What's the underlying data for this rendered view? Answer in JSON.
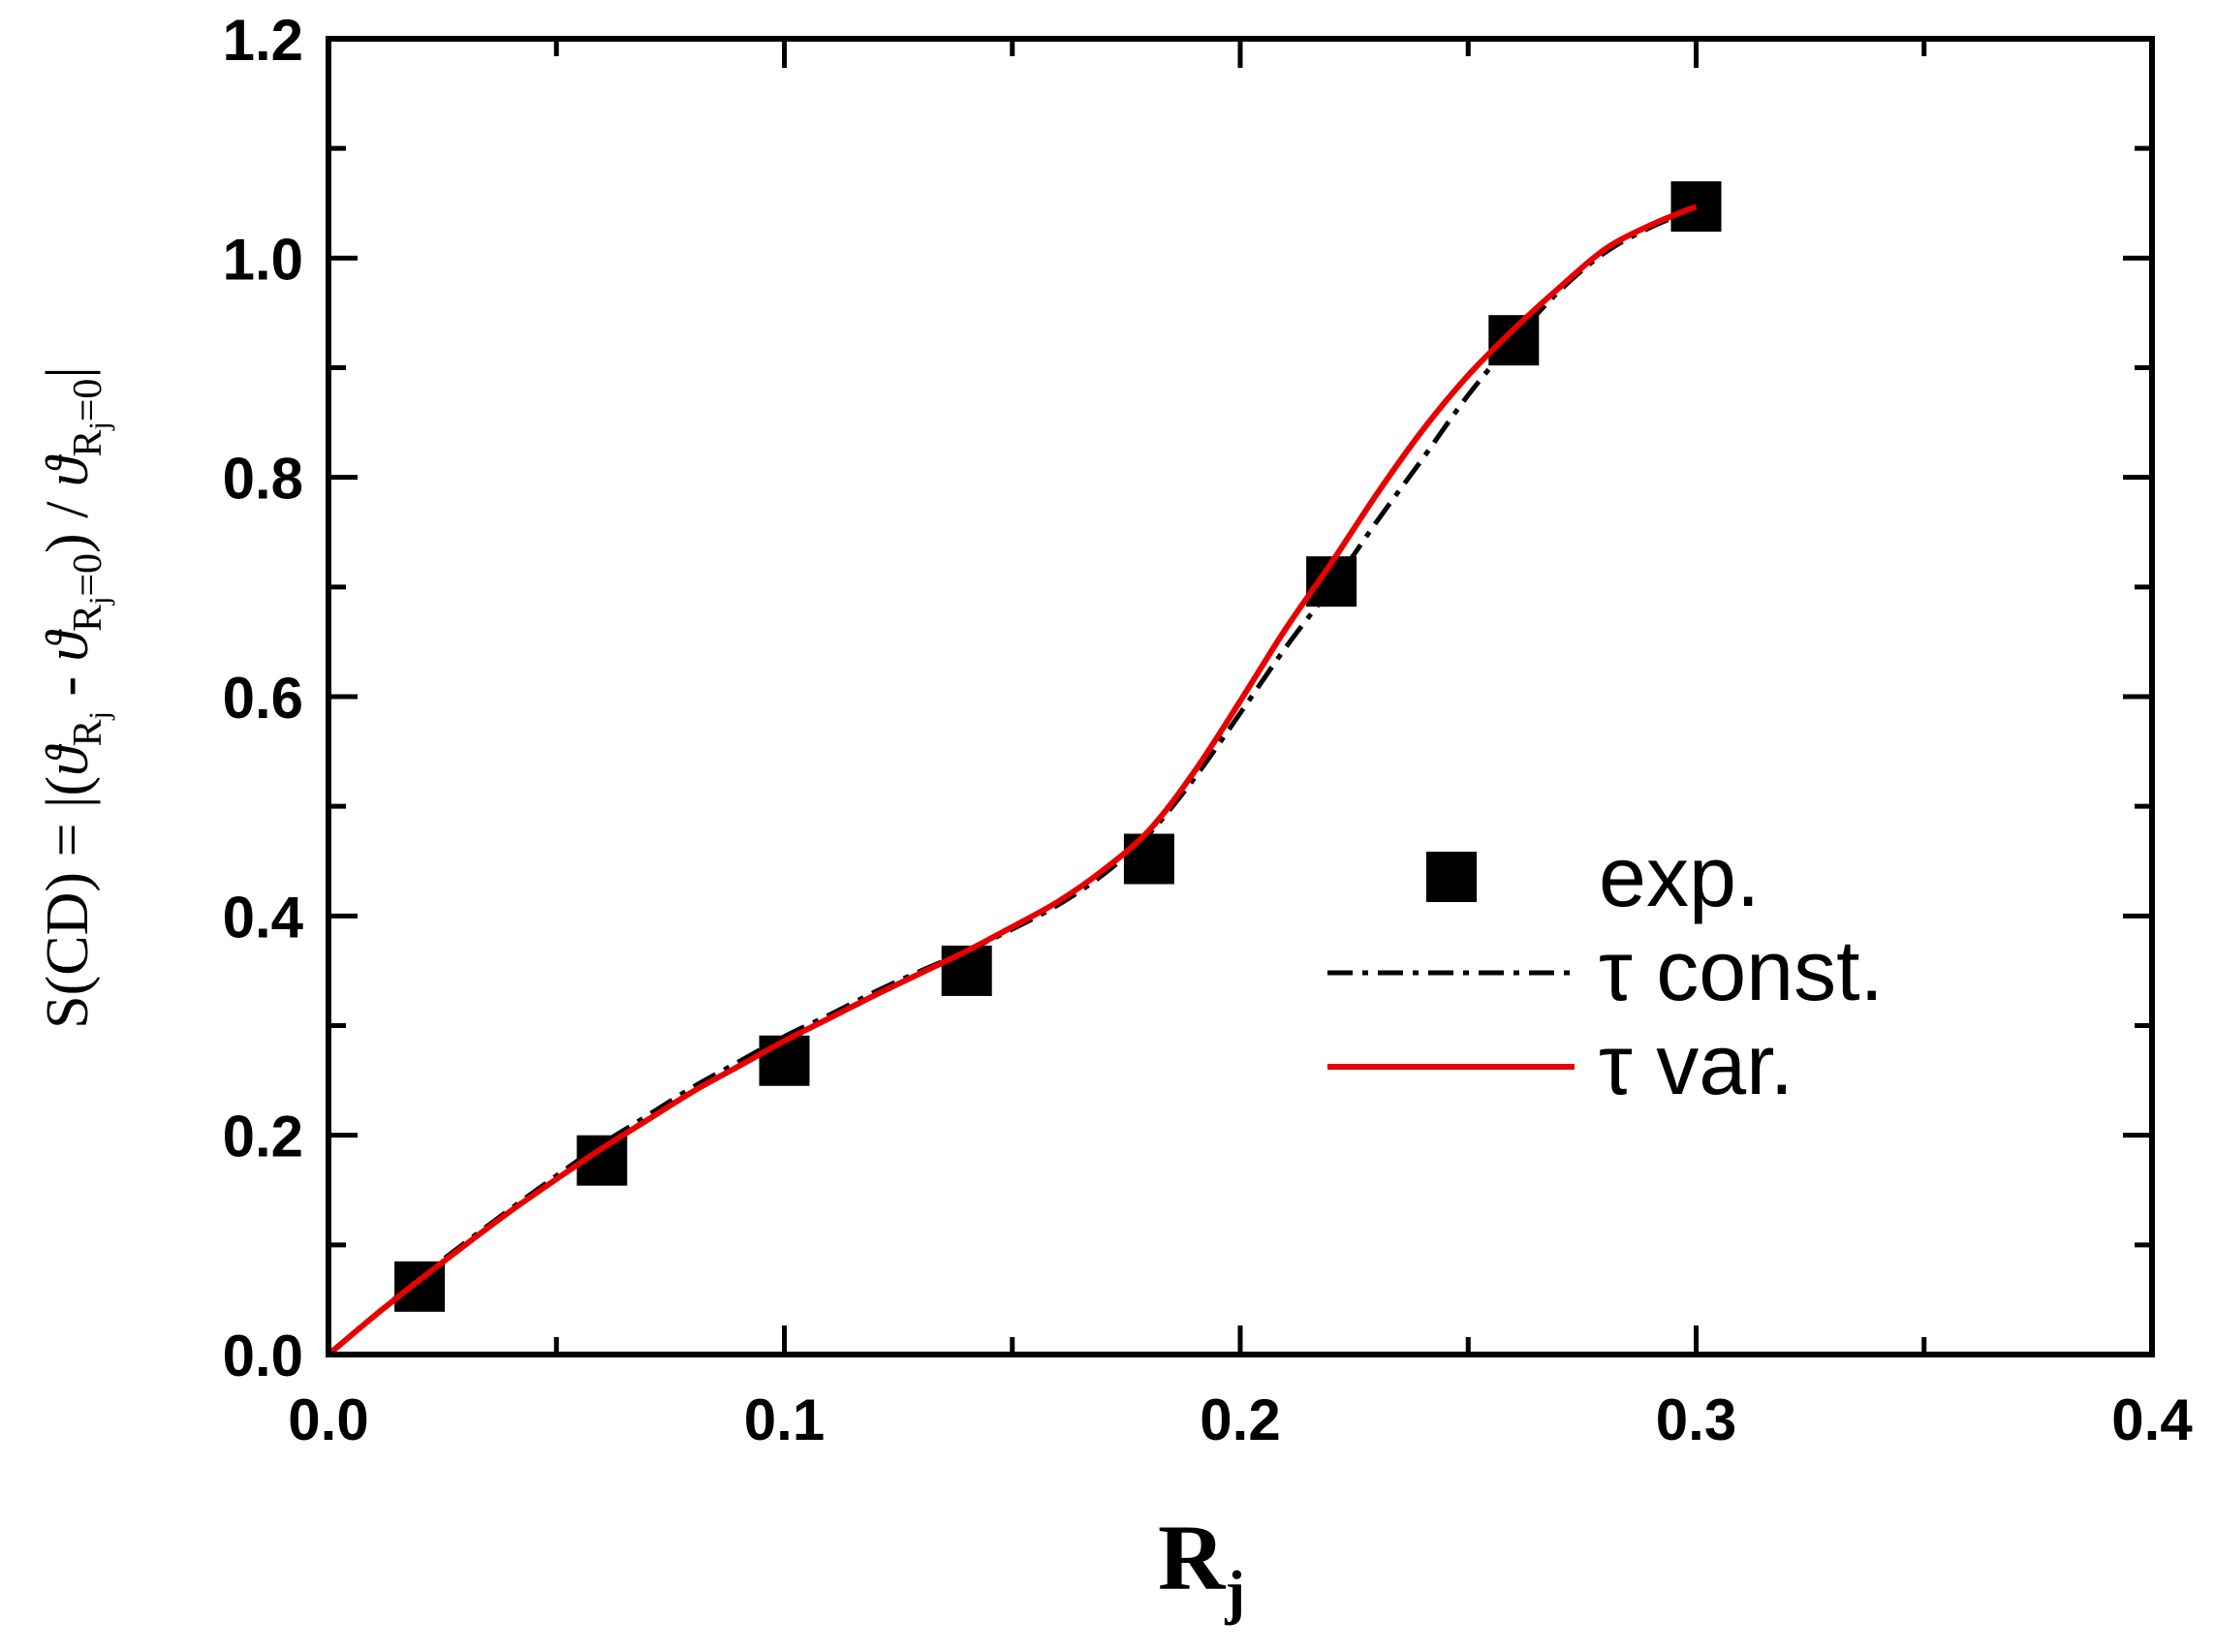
{
  "chart_data": {
    "type": "line",
    "xlabel": "R",
    "xlabel_sub": "j",
    "ylabel": {
      "prefix": "S(CD) = |(",
      "theta": "ϑ",
      "sub_Rj": "R",
      "sub_Rj_j": "j",
      "mid": " - ",
      "sub_R0": "R",
      "sub_R0_rest": "j",
      "sub_R0_eq": "=0",
      "close": ") / ",
      "end": "|"
    },
    "xlim": [
      0.0,
      0.4
    ],
    "ylim": [
      0.0,
      1.2
    ],
    "x_ticks": [
      0.0,
      0.1,
      0.2,
      0.3,
      0.4
    ],
    "x_tick_labels": [
      "0.0",
      "0.1",
      "0.2",
      "0.3",
      "0.4"
    ],
    "y_ticks": [
      0.0,
      0.2,
      0.4,
      0.6,
      0.8,
      1.0,
      1.2
    ],
    "y_tick_labels": [
      "0.0",
      "0.2",
      "0.4",
      "0.6",
      "0.8",
      "1.0",
      "1.2"
    ],
    "x_minor_step": 0.05,
    "y_minor_step": 0.1,
    "grid": false,
    "legend_position": "right-center",
    "series": [
      {
        "name": "exp.",
        "style": "markers",
        "marker": "square",
        "color": "#000000",
        "x": [
          0.02,
          0.06,
          0.1,
          0.14,
          0.18,
          0.22,
          0.26,
          0.3
        ],
        "y": [
          0.062,
          0.177,
          0.268,
          0.35,
          0.452,
          0.705,
          0.925,
          1.047
        ]
      },
      {
        "name": "τ const.",
        "style": "dash-dot",
        "color": "#000000",
        "x": [
          0.0,
          0.01,
          0.02,
          0.03,
          0.04,
          0.05,
          0.06,
          0.07,
          0.08,
          0.09,
          0.1,
          0.11,
          0.12,
          0.13,
          0.14,
          0.15,
          0.16,
          0.17,
          0.18,
          0.19,
          0.2,
          0.21,
          0.22,
          0.23,
          0.24,
          0.25,
          0.26,
          0.27,
          0.28,
          0.29,
          0.3
        ],
        "y": [
          0.0,
          0.035,
          0.07,
          0.102,
          0.133,
          0.163,
          0.192,
          0.218,
          0.244,
          0.267,
          0.29,
          0.31,
          0.331,
          0.35,
          0.368,
          0.388,
          0.41,
          0.438,
          0.475,
          0.526,
          0.585,
          0.645,
          0.7,
          0.76,
          0.817,
          0.875,
          0.925,
          0.97,
          1.005,
          1.028,
          1.045
        ]
      },
      {
        "name": "τ var.",
        "style": "solid",
        "color": "#e60000",
        "x": [
          0.0,
          0.01,
          0.02,
          0.03,
          0.04,
          0.05,
          0.06,
          0.07,
          0.08,
          0.09,
          0.1,
          0.11,
          0.12,
          0.13,
          0.14,
          0.15,
          0.16,
          0.17,
          0.18,
          0.19,
          0.2,
          0.21,
          0.22,
          0.23,
          0.24,
          0.25,
          0.26,
          0.27,
          0.28,
          0.29,
          0.3
        ],
        "y": [
          0.0,
          0.035,
          0.068,
          0.1,
          0.131,
          0.16,
          0.188,
          0.214,
          0.24,
          0.263,
          0.286,
          0.307,
          0.328,
          0.348,
          0.368,
          0.39,
          0.413,
          0.442,
          0.478,
          0.532,
          0.596,
          0.662,
          0.722,
          0.785,
          0.843,
          0.893,
          0.935,
          0.973,
          1.008,
          1.03,
          1.047
        ]
      }
    ]
  }
}
